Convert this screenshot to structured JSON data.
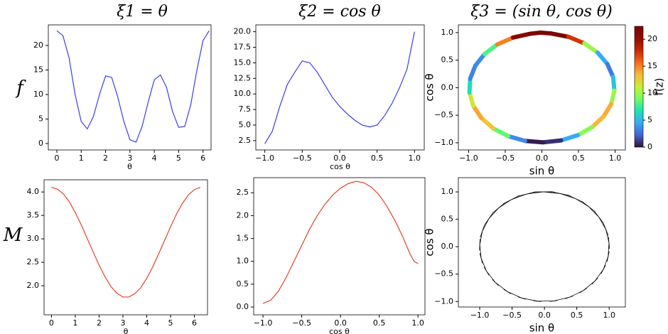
{
  "column_titles": [
    "ξ1 = θ",
    "ξ2 = cos θ",
    "ξ3 = (sin θ, cos θ)"
  ],
  "row_labels": [
    "f",
    "M"
  ],
  "chart_data": [
    {
      "type": "line",
      "color": "#3b3bf5",
      "xlabel": "θ",
      "x": [
        0,
        0.25,
        0.5,
        0.75,
        1.0,
        1.25,
        1.5,
        1.75,
        2.0,
        2.25,
        2.5,
        2.75,
        3.0,
        3.25,
        3.5,
        3.75,
        4.0,
        4.25,
        4.5,
        4.75,
        5.0,
        5.25,
        5.5,
        5.75,
        6.0,
        6.25
      ],
      "values": [
        23,
        22,
        17.5,
        10,
        4.5,
        3.0,
        5.5,
        10,
        13.8,
        13.5,
        9.5,
        4.5,
        0.8,
        0.3,
        3.5,
        8.5,
        13,
        14,
        11.5,
        6.5,
        3.3,
        3.5,
        8,
        15,
        21,
        23
      ],
      "xlim": [
        -0.35,
        6.33
      ],
      "ylim": [
        -1.3,
        24.2
      ],
      "xticks": [
        0,
        1,
        2,
        3,
        4,
        5,
        6
      ],
      "yticks": [
        0,
        5,
        10,
        15,
        20
      ]
    },
    {
      "type": "line",
      "color": "#3b3bf5",
      "xlabel": "cos θ",
      "x": [
        -1,
        -0.9,
        -0.8,
        -0.7,
        -0.6,
        -0.5,
        -0.4,
        -0.3,
        -0.2,
        -0.1,
        0,
        0.1,
        0.2,
        0.3,
        0.4,
        0.5,
        0.6,
        0.7,
        0.8,
        0.9,
        0.95,
        1.0
      ],
      "values": [
        2,
        4,
        8,
        11.5,
        13.5,
        15.3,
        15,
        13.5,
        11.5,
        9.5,
        8,
        6.8,
        5.8,
        5,
        4.7,
        5,
        6.5,
        8.5,
        11,
        14,
        17,
        20
      ],
      "xlim": [
        -1.12,
        1.13
      ],
      "ylim": [
        1.0,
        21.1
      ],
      "xticks": [
        {
          "value": -1.0,
          "label": "−1.0"
        },
        {
          "value": -0.5,
          "label": "−0.5"
        },
        {
          "value": 0.0,
          "label": "0.0"
        },
        0.5,
        {
          "value": 1.0,
          "label": "1.0"
        }
      ],
      "yticks": [
        2.5,
        {
          "value": 5.0,
          "label": "5.0"
        },
        7.5,
        {
          "value": 10.0,
          "label": "10.0"
        },
        12.5,
        {
          "value": 15.0,
          "label": "15.0"
        },
        17.5,
        {
          "value": 20.0,
          "label": "20.0"
        }
      ]
    },
    {
      "type": "scatter",
      "xlabel": "sin θ",
      "ylabel": "cos θ",
      "colormap": "turbo",
      "colorbar_label": "f(z)",
      "x": [
        0,
        0.247,
        0.479,
        0.682,
        0.841,
        0.949,
        0.997,
        0.984,
        0.909,
        0.778,
        0.598,
        0.382,
        0.141,
        -0.108,
        -0.351,
        -0.572,
        -0.757,
        -0.895,
        -0.978,
        -0.999,
        -0.959,
        -0.859,
        -0.706,
        -0.51,
        -0.279,
        -0.033
      ],
      "y": [
        1,
        0.969,
        0.878,
        0.732,
        0.54,
        0.315,
        0.071,
        -0.178,
        -0.416,
        -0.628,
        -0.801,
        -0.924,
        -0.99,
        -0.994,
        -0.936,
        -0.82,
        -0.654,
        -0.446,
        -0.211,
        0.038,
        0.284,
        0.512,
        0.709,
        0.86,
        0.96,
        0.999
      ],
      "c": [
        23,
        22,
        17.5,
        10,
        4.5,
        3.0,
        5.5,
        10,
        13.8,
        13.5,
        9.5,
        4.5,
        0.8,
        0.3,
        3.5,
        8.5,
        13,
        14,
        11.5,
        6.5,
        3.3,
        3.5,
        8,
        15,
        21,
        23
      ],
      "xlim": [
        -1.14,
        1.14
      ],
      "ylim": [
        -1.13,
        1.14
      ],
      "clim": [
        0,
        22.4
      ],
      "xticks": [
        {
          "value": -1.0,
          "label": "−1.0"
        },
        {
          "value": -0.5,
          "label": "−0.5"
        },
        {
          "value": 0.0,
          "label": "0.0"
        },
        0.5,
        {
          "value": 1.0,
          "label": "1.0"
        }
      ],
      "yticks": [
        {
          "value": -1.0,
          "label": "−1.0"
        },
        {
          "value": -0.5,
          "label": "−0.5"
        },
        {
          "value": 0.0,
          "label": "0.0"
        },
        0.5,
        {
          "value": 1.0,
          "label": "1.0"
        }
      ],
      "cticks": [
        0,
        5,
        10,
        15,
        20
      ]
    },
    {
      "type": "line",
      "color": "#e8412c",
      "xlabel": "θ",
      "x": [
        0,
        0.25,
        0.5,
        0.75,
        1.0,
        1.25,
        1.5,
        1.75,
        2.0,
        2.25,
        2.5,
        2.75,
        3.0,
        3.25,
        3.5,
        3.75,
        4.0,
        4.25,
        4.5,
        4.75,
        5.0,
        5.25,
        5.5,
        5.75,
        6.0,
        6.25
      ],
      "values": [
        4.1,
        4.06,
        3.96,
        3.79,
        3.56,
        3.3,
        3.01,
        2.72,
        2.44,
        2.19,
        1.98,
        1.84,
        1.76,
        1.76,
        1.83,
        1.96,
        2.16,
        2.4,
        2.68,
        2.97,
        3.26,
        3.53,
        3.76,
        3.94,
        4.05,
        4.1
      ],
      "xlim": [
        -0.31,
        6.55
      ],
      "ylim": [
        1.38,
        4.26
      ],
      "xticks": [
        0,
        1,
        2,
        3,
        4,
        5,
        6
      ],
      "yticks": [
        {
          "value": 2.0,
          "label": "2.0"
        },
        2.5,
        {
          "value": 3.0,
          "label": "3.0"
        },
        3.5,
        {
          "value": 4.0,
          "label": "4.0"
        }
      ]
    },
    {
      "type": "line",
      "color": "#e8412c",
      "xlabel": "cos θ",
      "x": [
        -1,
        -0.9,
        -0.8,
        -0.7,
        -0.6,
        -0.5,
        -0.4,
        -0.3,
        -0.2,
        -0.1,
        0,
        0.1,
        0.2,
        0.3,
        0.4,
        0.5,
        0.6,
        0.7,
        0.8,
        0.9,
        0.95,
        1.0
      ],
      "values": [
        0.08,
        0.15,
        0.35,
        0.65,
        1.0,
        1.35,
        1.7,
        2.0,
        2.25,
        2.45,
        2.6,
        2.7,
        2.75,
        2.72,
        2.62,
        2.45,
        2.2,
        1.9,
        1.55,
        1.15,
        1.0,
        0.95
      ],
      "xlim": [
        -1.12,
        1.09
      ],
      "ylim": [
        -0.17,
        2.83
      ],
      "xticks": [
        {
          "value": -1.0,
          "label": "−1.0"
        },
        {
          "value": -0.5,
          "label": "−0.5"
        },
        {
          "value": 0.0,
          "label": "0.0"
        },
        0.5,
        {
          "value": 1.0,
          "label": "1.0"
        }
      ],
      "yticks": [
        {
          "value": 0.0,
          "label": "0.0"
        },
        0.5,
        {
          "value": 1.0,
          "label": "1.0"
        },
        1.5,
        {
          "value": 2.0,
          "label": "2.0"
        },
        2.5
      ]
    },
    {
      "type": "quiver",
      "color": "#000000",
      "xlabel": "sin θ",
      "ylabel": "cos θ",
      "x": [
        0,
        0.247,
        0.479,
        0.682,
        0.841,
        0.949,
        0.997,
        0.984,
        0.909,
        0.778,
        0.598,
        0.382,
        0.141,
        -0.108,
        -0.351,
        -0.572,
        -0.757,
        -0.895,
        -0.978,
        -0.999,
        -0.959,
        -0.859,
        -0.706,
        -0.51,
        -0.279,
        -0.033
      ],
      "y": [
        1,
        0.969,
        0.878,
        0.732,
        0.54,
        0.315,
        0.071,
        -0.178,
        -0.416,
        -0.628,
        -0.801,
        -0.924,
        -0.99,
        -0.994,
        -0.936,
        -0.82,
        -0.654,
        -0.446,
        -0.211,
        0.038,
        0.284,
        0.512,
        0.709,
        0.86,
        0.96,
        0.999
      ],
      "lengths": [
        0.3,
        0.3,
        0.29,
        0.28,
        0.26,
        0.24,
        0.22,
        0.19,
        0.17,
        0.15,
        0.14,
        0.13,
        0.12,
        0.12,
        0.13,
        0.14,
        0.15,
        0.17,
        0.19,
        0.21,
        0.24,
        0.26,
        0.27,
        0.29,
        0.3,
        0.3
      ],
      "xlim": [
        -1.33,
        1.25
      ],
      "ylim": [
        -1.1,
        1.26
      ],
      "xticks": [
        {
          "value": -1.0,
          "label": "−1.0"
        },
        {
          "value": -0.5,
          "label": "−0.5"
        },
        {
          "value": 0.0,
          "label": "0.0"
        },
        0.5,
        {
          "value": 1.0,
          "label": "1.0"
        }
      ],
      "yticks": [
        {
          "value": -1.0,
          "label": "−1.0"
        },
        {
          "value": -0.5,
          "label": "−0.5"
        },
        {
          "value": 0.0,
          "label": "0.0"
        },
        0.5,
        {
          "value": 1.0,
          "label": "1.0"
        }
      ]
    }
  ]
}
